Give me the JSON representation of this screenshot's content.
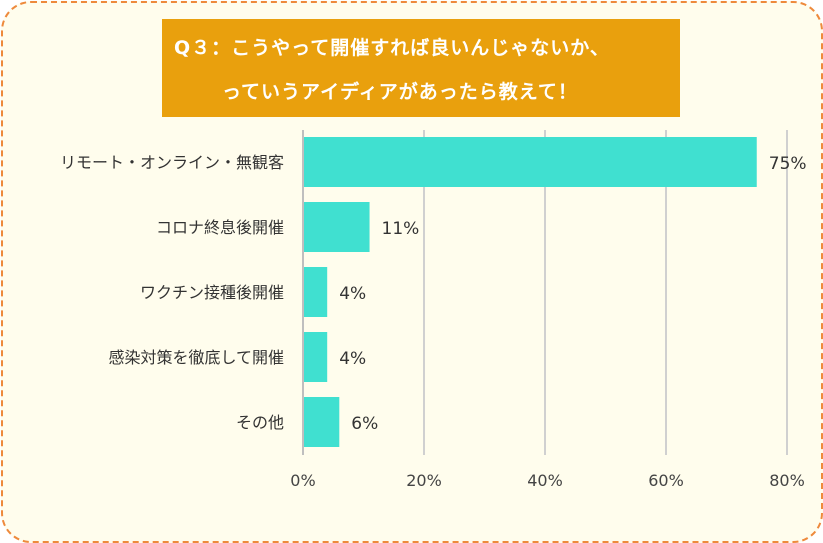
{
  "title": {
    "line1": "Q３：こうやって開催すれば良いんじゃないか、",
    "line2": "っていうアイディアがあったら教えて！"
  },
  "colors": {
    "bar": "#40e0d0",
    "title_bg": "#e9a00d",
    "border": "#ee8a3c",
    "background": "#fffded",
    "grid": "#d0d0d0"
  },
  "chart_data": {
    "type": "bar",
    "orientation": "horizontal",
    "categories": [
      "リモート・オンライン・無観客",
      "コロナ終息後開催",
      "ワクチン接種後開催",
      "感染対策を徹底して開催",
      "その他"
    ],
    "values": [
      75,
      11,
      4,
      4,
      6
    ],
    "data_labels": [
      "75%",
      "11%",
      "4%",
      "4%",
      "6%"
    ],
    "xlim": [
      0,
      80
    ],
    "xticks": [
      0,
      20,
      40,
      60,
      80
    ],
    "xtick_labels": [
      "0%",
      "20%",
      "40%",
      "60%",
      "80%"
    ],
    "grid": true,
    "legend": "none"
  }
}
